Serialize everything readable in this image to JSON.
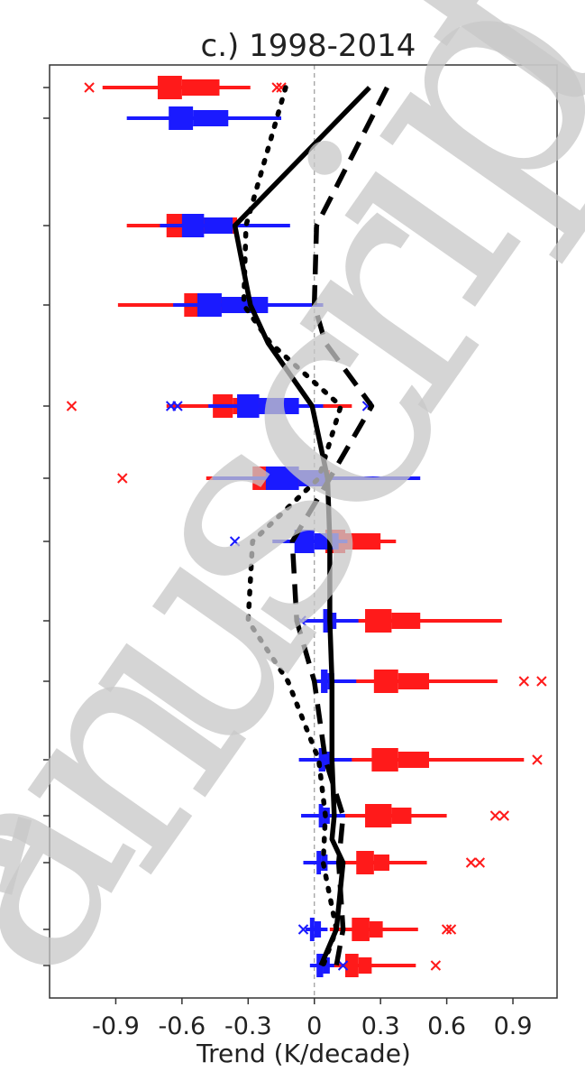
{
  "chart_data": {
    "type": "box",
    "title": "c.) 1998-2014",
    "xlabel": "Trend (K/decade)",
    "ylabel": "",
    "xlim": [
      -1.2,
      1.1
    ],
    "x_ticks": [
      -0.9,
      -0.6,
      -0.3,
      0,
      0.3,
      0.6,
      0.9
    ],
    "x_tick_labels": [
      "-0.9",
      "-0.6",
      "-0.3",
      "0",
      "0.3",
      "0.6",
      "0.9"
    ],
    "y_levels": [
      20,
      30,
      50,
      70,
      100,
      150,
      200,
      250,
      300,
      400,
      500,
      700,
      850,
      925
    ],
    "y_tick_labels_visible": false,
    "reference_line_x": 0,
    "colors": {
      "red_series": "#ff1a1a",
      "blue_series": "#1a1aff",
      "lines": "#000000",
      "watermark": "#c8c8c8"
    },
    "red_boxes": [
      {
        "level": 20,
        "whisker_low": -0.96,
        "q1": -0.71,
        "median": -0.6,
        "q3": -0.43,
        "whisker_high": -0.29,
        "outliers": [
          -1.02,
          -0.17,
          -0.15
        ]
      },
      {
        "level": 50,
        "whisker_low": -0.85,
        "q1": -0.67,
        "median": -0.58,
        "q3": -0.35,
        "whisker_high": -0.19,
        "outliers": []
      },
      {
        "level": 70,
        "whisker_low": -0.89,
        "q1": -0.59,
        "median": -0.48,
        "q3": -0.28,
        "whisker_high": -0.05,
        "outliers": []
      },
      {
        "level": 100,
        "whisker_low": -0.67,
        "q1": -0.46,
        "median": -0.37,
        "q3": -0.14,
        "whisker_high": 0.17,
        "outliers": [
          -1.1
        ]
      },
      {
        "level": 150,
        "whisker_low": -0.49,
        "q1": -0.28,
        "median": -0.1,
        "q3": 0.07,
        "whisker_high": 0.33,
        "outliers": [
          -0.87
        ]
      },
      {
        "level": 200,
        "whisker_low": -0.09,
        "q1": 0.05,
        "median": 0.14,
        "q3": 0.3,
        "whisker_high": 0.37,
        "outliers": []
      },
      {
        "level": 250,
        "whisker_low": 0.1,
        "q1": 0.23,
        "median": 0.35,
        "q3": 0.48,
        "whisker_high": 0.85,
        "outliers": []
      },
      {
        "level": 300,
        "whisker_low": 0.11,
        "q1": 0.27,
        "median": 0.38,
        "q3": 0.52,
        "whisker_high": 0.83,
        "outliers": [
          0.95,
          1.03
        ]
      },
      {
        "level": 400,
        "whisker_low": 0.08,
        "q1": 0.26,
        "median": 0.38,
        "q3": 0.52,
        "whisker_high": 0.95,
        "outliers": [
          1.01
        ]
      },
      {
        "level": 500,
        "whisker_low": 0.1,
        "q1": 0.23,
        "median": 0.35,
        "q3": 0.44,
        "whisker_high": 0.6,
        "outliers": [
          0.82,
          0.86
        ]
      },
      {
        "level": 700,
        "whisker_low": 0.07,
        "q1": 0.19,
        "median": 0.27,
        "q3": 0.34,
        "whisker_high": 0.51,
        "outliers": [
          0.71,
          0.75
        ]
      },
      {
        "level": 850,
        "whisker_low": 0.07,
        "q1": 0.17,
        "median": 0.25,
        "q3": 0.31,
        "whisker_high": 0.47,
        "outliers": [
          0.6,
          0.62
        ]
      },
      {
        "level": 925,
        "whisker_low": 0.05,
        "q1": 0.14,
        "median": 0.2,
        "q3": 0.26,
        "whisker_high": 0.46,
        "outliers": [
          0.55
        ]
      }
    ],
    "blue_boxes": [
      {
        "level": 30,
        "whisker_low": -0.85,
        "q1": -0.66,
        "median": -0.55,
        "q3": -0.39,
        "whisker_high": -0.15,
        "outliers": []
      },
      {
        "level": 50,
        "whisker_low": -0.7,
        "q1": -0.6,
        "median": -0.5,
        "q3": -0.37,
        "whisker_high": -0.11,
        "outliers": []
      },
      {
        "level": 70,
        "whisker_low": -0.64,
        "q1": -0.53,
        "median": -0.42,
        "q3": -0.21,
        "whisker_high": 0.04,
        "outliers": []
      },
      {
        "level": 100,
        "whisker_low": -0.48,
        "q1": -0.35,
        "median": -0.25,
        "q3": -0.07,
        "whisker_high": 0.04,
        "outliers": [
          -0.65,
          -0.62,
          0.24
        ]
      },
      {
        "level": 150,
        "whisker_low": -0.46,
        "q1": -0.22,
        "median": -0.07,
        "q3": 0.05,
        "whisker_high": 0.48,
        "outliers": []
      },
      {
        "level": 200,
        "whisker_low": -0.19,
        "q1": -0.09,
        "median": 0.0,
        "q3": 0.11,
        "whisker_high": 0.15,
        "outliers": [
          -0.36
        ]
      },
      {
        "level": 250,
        "whisker_low": -0.05,
        "q1": 0.04,
        "median": 0.07,
        "q3": 0.1,
        "whisker_high": 0.2,
        "outliers": [
          -0.06
        ]
      },
      {
        "level": 300,
        "whisker_low": 0.0,
        "q1": 0.03,
        "median": 0.06,
        "q3": 0.09,
        "whisker_high": 0.19,
        "outliers": []
      },
      {
        "level": 400,
        "whisker_low": -0.07,
        "q1": 0.02,
        "median": 0.05,
        "q3": 0.08,
        "whisker_high": 0.17,
        "outliers": []
      },
      {
        "level": 500,
        "whisker_low": -0.06,
        "q1": 0.02,
        "median": 0.04,
        "q3": 0.07,
        "whisker_high": 0.14,
        "outliers": []
      },
      {
        "level": 700,
        "whisker_low": -0.05,
        "q1": 0.01,
        "median": 0.03,
        "q3": 0.06,
        "whisker_high": 0.1,
        "outliers": []
      },
      {
        "level": 850,
        "whisker_low": -0.04,
        "q1": -0.02,
        "median": 0.0,
        "q3": 0.03,
        "whisker_high": 0.06,
        "outliers": [
          -0.05
        ]
      },
      {
        "level": 925,
        "whisker_low": -0.02,
        "q1": 0.01,
        "median": 0.04,
        "q3": 0.07,
        "whisker_high": 0.09,
        "outliers": [
          0.13
        ]
      }
    ],
    "lines": [
      {
        "style": "solid",
        "x": [
          0.25,
          -0.36,
          -0.29,
          -0.21,
          -0.01,
          0.06,
          0.07,
          0.07,
          0.08,
          0.08,
          0.09,
          0.08,
          0.13,
          0.1,
          0.03
        ],
        "y": [
          20,
          50,
          70,
          85,
          100,
          150,
          200,
          250,
          300,
          400,
          500,
          600,
          700,
          850,
          925
        ]
      },
      {
        "style": "dashed",
        "x": [
          0.33,
          0.01,
          0.0,
          0.05,
          0.26,
          0.07,
          -0.1,
          -0.08,
          0.0,
          0.05,
          0.13,
          0.11,
          0.13,
          0.1
        ],
        "y": [
          20,
          50,
          70,
          85,
          100,
          150,
          200,
          250,
          300,
          400,
          500,
          700,
          850,
          925
        ]
      },
      {
        "style": "dotted",
        "x": [
          -0.13,
          -0.31,
          -0.32,
          -0.2,
          0.12,
          0.02,
          -0.28,
          -0.3,
          -0.12,
          0.02,
          0.05,
          0.04,
          0.1,
          0.04
        ],
        "y": [
          20,
          50,
          70,
          85,
          100,
          150,
          200,
          250,
          300,
          400,
          500,
          700,
          850,
          925
        ]
      }
    ],
    "watermark": "Manuscript"
  }
}
